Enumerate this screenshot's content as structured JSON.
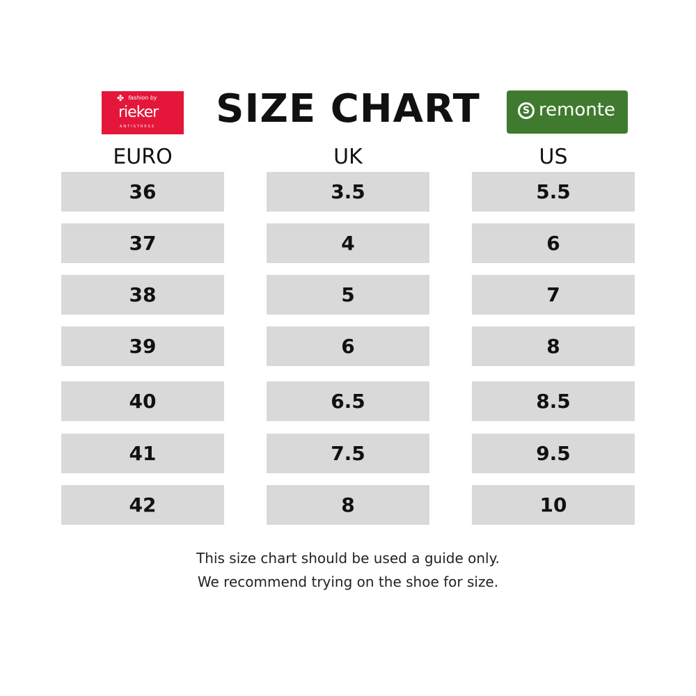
{
  "title": "SIZE CHART",
  "logos": {
    "left": {
      "name": "rieker",
      "tagline": "fashion by",
      "subtitle": "ANTISTRESS",
      "color": "#e4173a"
    },
    "right": {
      "name": "remonte",
      "color": "#3f7a2e"
    }
  },
  "table": {
    "headers": [
      "EURO",
      "UK",
      "US"
    ],
    "rows": [
      [
        "36",
        "3.5",
        "5.5"
      ],
      [
        "37",
        "4",
        "6"
      ],
      [
        "38",
        "5",
        "7"
      ],
      [
        "39",
        "6",
        "8"
      ],
      [
        "40",
        "6.5",
        "8.5"
      ],
      [
        "41",
        "7.5",
        "9.5"
      ],
      [
        "42",
        "8",
        "10"
      ]
    ]
  },
  "note": {
    "line1": "This size chart should be used a guide only.",
    "line2": "We recommend trying on the shoe for size."
  }
}
